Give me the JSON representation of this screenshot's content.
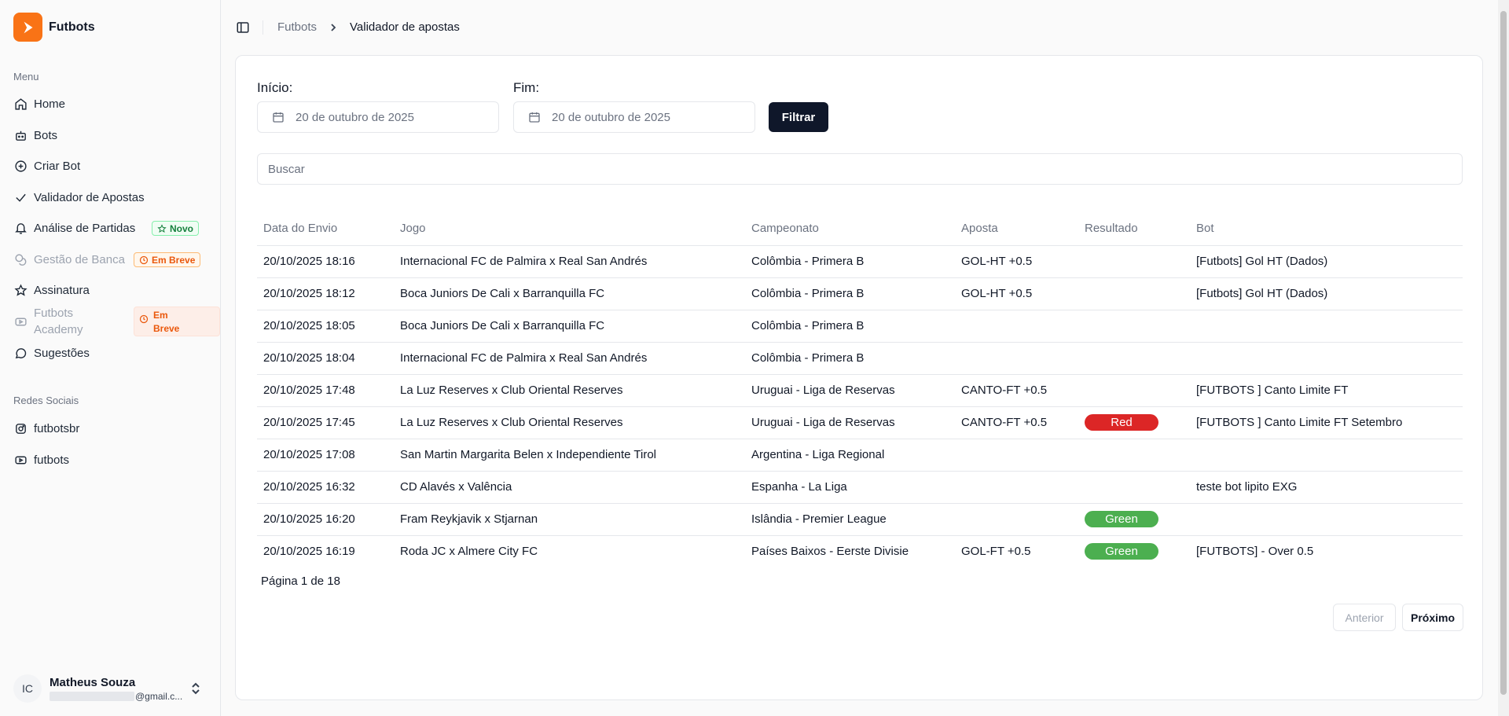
{
  "app": {
    "name": "Futbots"
  },
  "sidebar": {
    "menu_label": "Menu",
    "items": [
      {
        "label": "Home",
        "icon": "home-icon"
      },
      {
        "label": "Bots",
        "icon": "bot-icon"
      },
      {
        "label": "Criar Bot",
        "icon": "plus-circle-icon"
      },
      {
        "label": "Validador de Apostas",
        "icon": "check-icon"
      },
      {
        "label": "Análise de Partidas",
        "icon": "bell-icon",
        "badge": "Novo"
      },
      {
        "label": "Gestão de Banca",
        "icon": "coins-icon",
        "badge": "Em Breve",
        "disabled": true
      },
      {
        "label": "Assinatura",
        "icon": "star-icon"
      },
      {
        "label": "Futbots Academy",
        "icon": "youtube-icon",
        "badge": "Em Breve",
        "disabled": true
      },
      {
        "label": "Sugestões",
        "icon": "message-circle-icon"
      }
    ],
    "social_label": "Redes Sociais",
    "social": [
      {
        "label": "futbotsbr",
        "icon": "instagram-icon"
      },
      {
        "label": "futbots",
        "icon": "youtube-icon"
      }
    ],
    "user": {
      "initials": "IC",
      "name": "Matheus Souza",
      "email_suffix": "@gmail.c..."
    }
  },
  "header": {
    "breadcrumb_root": "Futbots",
    "breadcrumb_current": "Validador de apostas"
  },
  "filters": {
    "start_label": "Início:",
    "start_value": "20 de outubro de 2025",
    "end_label": "Fim:",
    "end_value": "20 de outubro de 2025",
    "filter_button": "Filtrar",
    "search_placeholder": "Buscar"
  },
  "table": {
    "columns": [
      "Data do Envio",
      "Jogo",
      "Campeonato",
      "Aposta",
      "Resultado",
      "Bot"
    ],
    "rows": [
      [
        "20/10/2025 18:16",
        "Internacional FC de Palmira x Real San Andrés",
        "Colômbia - Primera B",
        "GOL-HT +0.5",
        "",
        "[Futbots] Gol HT (Dados)"
      ],
      [
        "20/10/2025 18:12",
        "Boca Juniors De Cali x Barranquilla FC",
        "Colômbia - Primera B",
        "GOL-HT +0.5",
        "",
        "[Futbots] Gol HT (Dados)"
      ],
      [
        "20/10/2025 18:05",
        "Boca Juniors De Cali x Barranquilla FC",
        "Colômbia - Primera B",
        "",
        "",
        ""
      ],
      [
        "20/10/2025 18:04",
        "Internacional FC de Palmira x Real San Andrés",
        "Colômbia - Primera B",
        "",
        "",
        ""
      ],
      [
        "20/10/2025 17:48",
        "La Luz Reserves x Club Oriental Reserves",
        "Uruguai - Liga de Reservas",
        "CANTO-FT +0.5",
        "",
        "[FUTBOTS ] Canto Limite FT"
      ],
      [
        "20/10/2025 17:45",
        "La Luz Reserves x Club Oriental Reserves",
        "Uruguai - Liga de Reservas",
        "CANTO-FT +0.5",
        "Red",
        "[FUTBOTS ] Canto Limite FT Setembro"
      ],
      [
        "20/10/2025 17:08",
        "San Martin Margarita Belen x Independiente Tirol",
        "Argentina - Liga Regional",
        "",
        "",
        ""
      ],
      [
        "20/10/2025 16:32",
        "CD Alavés x Valência",
        "Espanha - La Liga",
        "",
        "",
        "teste bot lipito EXG"
      ],
      [
        "20/10/2025 16:20",
        "Fram Reykjavik x Stjarnan",
        "Islândia - Premier League",
        "",
        "Green",
        ""
      ],
      [
        "20/10/2025 16:19",
        "Roda JC x Almere City FC",
        "Países Baixos - Eerste Divisie",
        "GOL-FT +0.5",
        "Green",
        "[FUTBOTS] - Over 0.5"
      ]
    ]
  },
  "pagination": {
    "info": "Página 1 de 18",
    "prev": "Anterior",
    "next": "Próximo"
  },
  "colors": {
    "brand": "#f97316",
    "red": "#dc2626",
    "green": "#4caf50",
    "dark_button": "#0f172a"
  }
}
